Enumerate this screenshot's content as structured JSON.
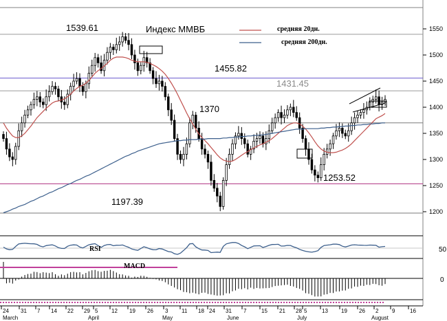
{
  "chart_data": {
    "type": "candlestick",
    "title": "Индекс ММВБ",
    "legend": [
      {
        "label": "средняя 20дн.",
        "color": "#c0504d"
      },
      {
        "label": "средняя 200дн.",
        "color": "#3c5f8c"
      }
    ],
    "y_ticks": [
      1200,
      1250,
      1300,
      1350,
      1400,
      1450,
      1500,
      1550
    ],
    "ylim": [
      1180,
      1580
    ],
    "level_labels": [
      "1539.61",
      "1455.82",
      "1431.45",
      "1370",
      "1253.52",
      "1197.39"
    ],
    "levels": [
      {
        "value": 1539.61,
        "color": "#9a9a9a"
      },
      {
        "value": 1455.82,
        "color": "#6a5acd"
      },
      {
        "value": 1431.45,
        "color": "#9a9a9a"
      },
      {
        "value": 1370,
        "color": "#7a7a7a"
      },
      {
        "value": 1253.52,
        "color": "#b03080"
      },
      {
        "value": 1197.39,
        "color": "#7a7a7a"
      }
    ],
    "x_day_labels": [
      "24",
      "31",
      "7",
      "14",
      "22",
      "29",
      "5",
      "12",
      "19",
      "26",
      "3",
      "11",
      "18",
      "24",
      "31",
      "7",
      "15",
      "21",
      "28",
      "5",
      "13",
      "19",
      "26",
      "2",
      "9",
      "16"
    ],
    "x_month_labels": [
      "March",
      "April",
      "May",
      "June",
      "July",
      "August"
    ],
    "rsi_label": "RSI",
    "rsi_ticks": [
      "50"
    ],
    "macd_label": "MACD",
    "macd_ticks": [
      "0"
    ],
    "close": [
      1340,
      1320,
      1305,
      1300,
      1325,
      1355,
      1370,
      1385,
      1395,
      1405,
      1415,
      1420,
      1410,
      1405,
      1420,
      1430,
      1440,
      1435,
      1420,
      1410,
      1405,
      1425,
      1440,
      1450,
      1455,
      1440,
      1430,
      1445,
      1465,
      1480,
      1495,
      1485,
      1470,
      1490,
      1505,
      1515,
      1510,
      1520,
      1525,
      1535,
      1528,
      1520,
      1500,
      1485,
      1470,
      1480,
      1495,
      1485,
      1470,
      1455,
      1445,
      1450,
      1440,
      1420,
      1395,
      1375,
      1340,
      1310,
      1300,
      1310,
      1330,
      1370,
      1385,
      1360,
      1340,
      1320,
      1310,
      1295,
      1260,
      1245,
      1230,
      1210,
      1260,
      1290,
      1310,
      1330,
      1345,
      1350,
      1340,
      1330,
      1310,
      1320,
      1335,
      1340,
      1345,
      1330,
      1340,
      1355,
      1370,
      1380,
      1390,
      1380,
      1385,
      1395,
      1400,
      1390,
      1380,
      1360,
      1340,
      1320,
      1300,
      1280,
      1270,
      1265,
      1290,
      1310,
      1320,
      1330,
      1345,
      1355,
      1360,
      1350,
      1345,
      1355,
      1370,
      1380,
      1385,
      1390,
      1395,
      1400,
      1410,
      1415,
      1420,
      1405,
      1410,
      1415
    ],
    "ma20": [
      1370,
      1360,
      1352,
      1345,
      1342,
      1342,
      1345,
      1350,
      1357,
      1364,
      1372,
      1380,
      1386,
      1392,
      1398,
      1403,
      1408,
      1411,
      1412,
      1414,
      1416,
      1420,
      1425,
      1431,
      1436,
      1440,
      1442,
      1446,
      1451,
      1458,
      1465,
      1470,
      1474,
      1479,
      1484,
      1490,
      1494,
      1496,
      1496,
      1496,
      1495,
      1493,
      1490,
      1488,
      1487,
      1487,
      1487,
      1486,
      1484,
      1481,
      1478,
      1474,
      1469,
      1463,
      1455,
      1446,
      1436,
      1425,
      1413,
      1401,
      1389,
      1378,
      1368,
      1358,
      1349,
      1342,
      1336,
      1330,
      1323,
      1316,
      1309,
      1303,
      1299,
      1297,
      1296,
      1297,
      1300,
      1304,
      1308,
      1312,
      1315,
      1319,
      1322,
      1325,
      1328,
      1330,
      1333,
      1336,
      1340,
      1345,
      1350,
      1355,
      1360,
      1365,
      1368,
      1370,
      1370,
      1368,
      1364,
      1358,
      1351,
      1343,
      1334,
      1326,
      1320,
      1316,
      1314,
      1313,
      1313,
      1314,
      1316,
      1318,
      1321,
      1325,
      1330,
      1336,
      1342,
      1348,
      1354,
      1360,
      1366,
      1372,
      1378,
      1381,
      1384,
      1388
    ],
    "ma200": [
      1198,
      1200,
      1202,
      1205,
      1207,
      1210,
      1212,
      1214,
      1217,
      1220,
      1222,
      1225,
      1228,
      1230,
      1233,
      1236,
      1238,
      1241,
      1244,
      1246,
      1249,
      1252,
      1254,
      1257,
      1260,
      1262,
      1265,
      1268,
      1270,
      1273,
      1276,
      1279,
      1282,
      1285,
      1288,
      1291,
      1294,
      1297,
      1300,
      1303,
      1306,
      1308,
      1311,
      1313,
      1316,
      1318,
      1320,
      1322,
      1324,
      1326,
      1328,
      1330,
      1331,
      1332,
      1333,
      1334,
      1335,
      1336,
      1336,
      1337,
      1337,
      1338,
      1338,
      1338,
      1339,
      1339,
      1339,
      1340,
      1340,
      1340,
      1340,
      1340,
      1341,
      1341,
      1342,
      1342,
      1343,
      1343,
      1344,
      1344,
      1345,
      1345,
      1346,
      1346,
      1347,
      1347,
      1348,
      1349,
      1350,
      1351,
      1352,
      1353,
      1354,
      1355,
      1356,
      1357,
      1358,
      1358,
      1358,
      1359,
      1359,
      1359,
      1359,
      1359,
      1360,
      1360,
      1361,
      1361,
      1362,
      1362,
      1363,
      1363,
      1364,
      1364,
      1365,
      1365,
      1366,
      1366,
      1367,
      1367,
      1368,
      1368,
      1369,
      1369,
      1370,
      1370
    ]
  }
}
